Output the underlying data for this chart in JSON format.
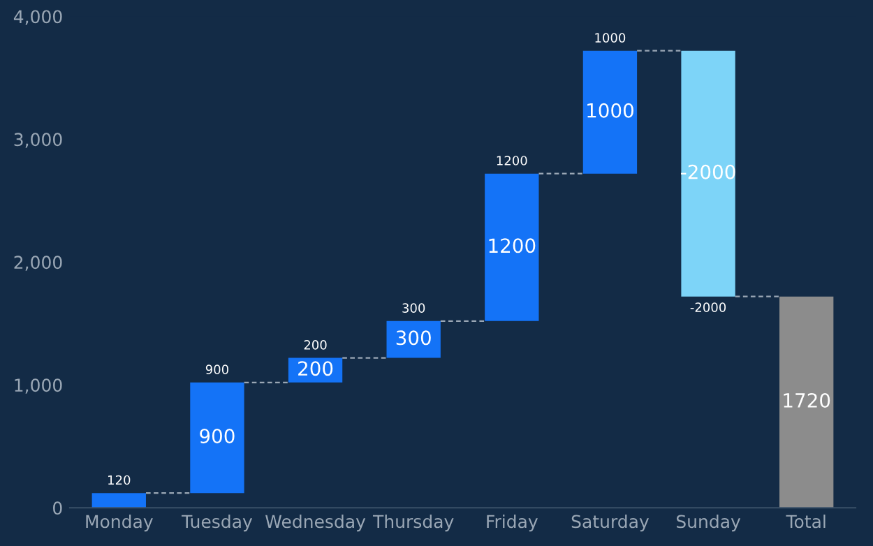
{
  "chart_data": {
    "type": "bar",
    "categories": [
      "Monday",
      "Tuesday",
      "Wednesday",
      "Thursday",
      "Friday",
      "Saturday",
      "Sunday",
      "Total"
    ],
    "values": [
      120,
      900,
      200,
      300,
      1200,
      1000,
      -2000,
      1720
    ],
    "base": [
      0,
      120,
      1020,
      1220,
      1520,
      2720,
      3720,
      0
    ],
    "colors": [
      "#1473f7",
      "#1473f7",
      "#1473f7",
      "#1473f7",
      "#1473f7",
      "#1473f7",
      "#7dd4f8",
      "#8c8c8c"
    ],
    "value_labels": [
      "120",
      "900",
      "200",
      "300",
      "1200",
      "1000",
      "-2000",
      null
    ],
    "annotations": [
      "900",
      "200",
      "300",
      "1200",
      "1000",
      "-2000",
      "1720"
    ],
    "ylim": [
      0,
      4000
    ],
    "yticks": [
      {
        "value": 0,
        "label": "0"
      },
      {
        "value": 1000,
        "label": "1,000"
      },
      {
        "value": 2000,
        "label": "2,000"
      },
      {
        "value": 3000,
        "label": "3,000"
      },
      {
        "value": 4000,
        "label": "4,000"
      }
    ],
    "grid": false
  }
}
